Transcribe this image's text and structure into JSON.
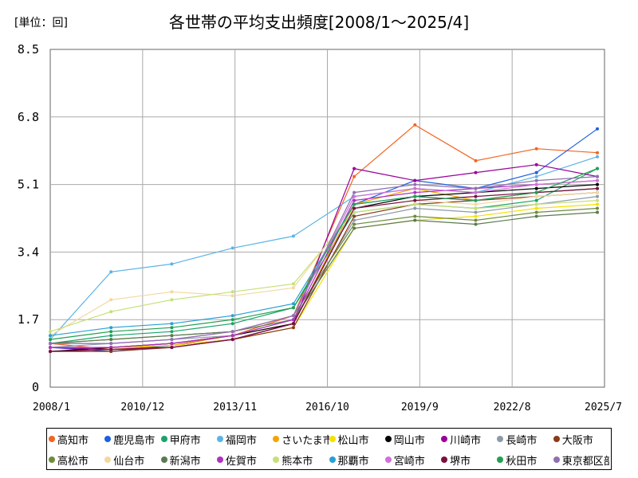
{
  "unit_label": "[単位：回]",
  "chart_data": {
    "type": "line",
    "title": "各世帯の平均支出頻度[2008/1～2025/4]",
    "xlabel": "",
    "ylabel": "",
    "x_range": [
      "2008/1",
      "2025/7"
    ],
    "ylim": [
      0,
      8.5
    ],
    "y_ticks": [
      "0",
      "1.7",
      "3.4",
      "5.1",
      "6.8",
      "8.5"
    ],
    "x_ticks": [
      "2008/1",
      "2010/12",
      "2013/11",
      "2016/10",
      "2019/9",
      "2022/8",
      "2025/7"
    ],
    "grid": true,
    "legend_position": "bottom",
    "series": [
      {
        "name": "高知市",
        "color": "#f26522",
        "values": [
          1.1,
          0.95,
          1.05,
          1.3,
          1.8,
          5.3,
          6.6,
          5.7,
          6.0,
          5.9
        ]
      },
      {
        "name": "鹿児島市",
        "color": "#1f5fe0",
        "values": [
          1.0,
          0.9,
          1.05,
          1.2,
          1.6,
          4.6,
          5.2,
          5.0,
          5.4,
          6.5
        ]
      },
      {
        "name": "甲府市",
        "color": "#1aa36a",
        "values": [
          1.1,
          1.3,
          1.4,
          1.6,
          2.0,
          4.4,
          4.6,
          4.5,
          4.7,
          5.5
        ]
      },
      {
        "name": "福岡市",
        "color": "#5ab4e5",
        "values": [
          1.2,
          2.9,
          3.1,
          3.5,
          3.8,
          4.8,
          5.0,
          4.9,
          5.3,
          5.8
        ]
      },
      {
        "name": "さいたま市",
        "color": "#f4a400",
        "values": [
          1.0,
          1.0,
          1.1,
          1.3,
          1.6,
          4.6,
          5.0,
          4.7,
          4.9,
          5.0
        ]
      },
      {
        "name": "松山市",
        "color": "#f7df00",
        "values": [
          1.0,
          1.0,
          1.05,
          1.2,
          1.5,
          4.0,
          4.2,
          4.3,
          4.5,
          4.6
        ]
      },
      {
        "name": "岡山市",
        "color": "#000000",
        "values": [
          0.9,
          1.0,
          1.1,
          1.3,
          1.6,
          4.5,
          4.8,
          4.9,
          5.0,
          5.1
        ]
      },
      {
        "name": "川崎市",
        "color": "#990099",
        "values": [
          1.0,
          0.95,
          1.0,
          1.2,
          1.6,
          5.5,
          5.2,
          5.4,
          5.6,
          5.3
        ]
      },
      {
        "name": "長崎市",
        "color": "#8c9aa8",
        "values": [
          1.0,
          1.1,
          1.2,
          1.3,
          1.7,
          4.2,
          4.5,
          4.4,
          4.6,
          4.8
        ]
      },
      {
        "name": "大阪市",
        "color": "#8b3a1a",
        "values": [
          0.9,
          0.9,
          1.0,
          1.2,
          1.5,
          4.3,
          4.6,
          4.7,
          4.8,
          4.9
        ]
      },
      {
        "name": "高松市",
        "color": "#6e8b3d",
        "values": [
          1.1,
          1.2,
          1.3,
          1.4,
          1.8,
          4.1,
          4.3,
          4.2,
          4.4,
          4.5
        ]
      },
      {
        "name": "仙台市",
        "color": "#f2d8a0",
        "values": [
          1.3,
          2.2,
          2.4,
          2.3,
          2.5,
          4.5,
          4.7,
          4.6,
          4.8,
          4.9
        ]
      },
      {
        "name": "新潟市",
        "color": "#5a7a50",
        "values": [
          1.1,
          1.2,
          1.3,
          1.4,
          1.7,
          4.0,
          4.2,
          4.1,
          4.3,
          4.4
        ]
      },
      {
        "name": "佐賀市",
        "color": "#b030c0",
        "values": [
          1.0,
          1.0,
          1.1,
          1.3,
          1.7,
          4.7,
          4.9,
          5.0,
          5.1,
          5.2
        ]
      },
      {
        "name": "熊本市",
        "color": "#c5e07a",
        "values": [
          1.4,
          1.9,
          2.2,
          2.4,
          2.6,
          4.4,
          4.6,
          4.5,
          4.6,
          4.7
        ]
      },
      {
        "name": "那覇市",
        "color": "#2a9fd6",
        "values": [
          1.3,
          1.5,
          1.6,
          1.8,
          2.1,
          4.6,
          4.8,
          4.7,
          4.9,
          5.0
        ]
      },
      {
        "name": "宮崎市",
        "color": "#d070d8",
        "values": [
          1.1,
          1.1,
          1.2,
          1.4,
          1.8,
          4.8,
          5.0,
          4.9,
          5.1,
          5.2
        ]
      },
      {
        "name": "堺市",
        "color": "#7a1040",
        "values": [
          0.9,
          0.95,
          1.0,
          1.2,
          1.6,
          4.5,
          4.7,
          4.8,
          4.9,
          5.0
        ]
      },
      {
        "name": "秋田市",
        "color": "#20a050",
        "values": [
          1.2,
          1.4,
          1.5,
          1.7,
          2.0,
          4.6,
          4.8,
          4.7,
          4.9,
          5.5
        ]
      },
      {
        "name": "東京都区部",
        "color": "#9070b0",
        "values": [
          1.1,
          1.1,
          1.2,
          1.4,
          1.8,
          4.9,
          5.1,
          5.0,
          5.2,
          5.3
        ]
      }
    ]
  }
}
